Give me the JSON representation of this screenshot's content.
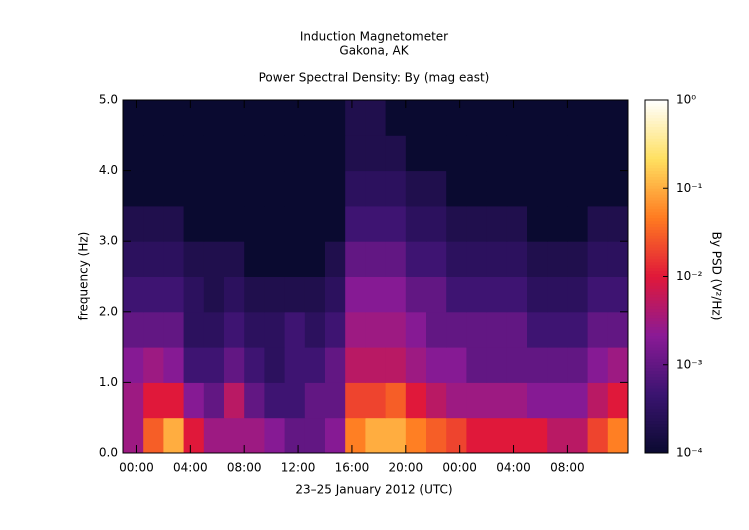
{
  "chart_data": {
    "type": "heatmap",
    "title": "Induction Magnetometer",
    "subtitle": "Gakona, AK",
    "plot_title": "Power Spectral Density: By (mag east)",
    "xlabel": "23–25 January 2012 (UTC)",
    "ylabel": "frequency (Hz)",
    "zlabel": "By PSD (V²/Hz)",
    "xlim": [
      -1,
      36.5
    ],
    "ylim": [
      0,
      5
    ],
    "xticks": [
      {
        "value": 0,
        "label": "00:00"
      },
      {
        "value": 4,
        "label": "04:00"
      },
      {
        "value": 8,
        "label": "08:00"
      },
      {
        "value": 12,
        "label": "12:00"
      },
      {
        "value": 16,
        "label": "16:00"
      },
      {
        "value": 20,
        "label": "20:00"
      },
      {
        "value": 24,
        "label": "00:00"
      },
      {
        "value": 28,
        "label": "04:00"
      },
      {
        "value": 32,
        "label": "08:00"
      }
    ],
    "yticks": [
      {
        "value": 0,
        "label": "0.0"
      },
      {
        "value": 1,
        "label": "1.0"
      },
      {
        "value": 2,
        "label": "2.0"
      },
      {
        "value": 3,
        "label": "3.0"
      },
      {
        "value": 4,
        "label": "4.0"
      },
      {
        "value": 5,
        "label": "5.0"
      }
    ],
    "zlim": [
      0.0001,
      1
    ],
    "zlog": true,
    "zticks": [
      {
        "value": 0.0001,
        "label": "10⁻⁴"
      },
      {
        "value": 0.001,
        "label": "10⁻³"
      },
      {
        "value": 0.01,
        "label": "10⁻²"
      },
      {
        "value": 0.1,
        "label": "10⁻¹"
      },
      {
        "value": 1,
        "label": "10⁰"
      }
    ],
    "colormap": [
      "#0a0a30",
      "#3a1470",
      "#8a1a96",
      "#e0183a",
      "#ff7a20",
      "#ffe060",
      "#ffffff"
    ],
    "xbins": [
      -1,
      0.5,
      2,
      3.5,
      5,
      6.5,
      8,
      9.5,
      11,
      12.5,
      14,
      15.5,
      17,
      18.5,
      20,
      21.5,
      23,
      24.5,
      26,
      27.5,
      29,
      30.5,
      32,
      33.5,
      35,
      36.5
    ],
    "ybins": [
      0,
      0.5,
      1,
      1.5,
      2,
      2.5,
      3,
      3.5,
      4,
      4.5,
      5
    ],
    "z": [
      [
        0.003,
        0.03,
        0.1,
        0.01,
        0.003,
        0.003,
        0.003,
        0.002,
        0.001,
        0.001,
        0.002,
        0.05,
        0.1,
        0.1,
        0.05,
        0.03,
        0.02,
        0.01,
        0.01,
        0.01,
        0.01,
        0.005,
        0.005,
        0.02,
        0.05
      ],
      [
        0.003,
        0.01,
        0.01,
        0.002,
        0.001,
        0.005,
        0.001,
        0.0005,
        0.0005,
        0.001,
        0.001,
        0.02,
        0.02,
        0.03,
        0.01,
        0.005,
        0.003,
        0.003,
        0.003,
        0.003,
        0.002,
        0.002,
        0.002,
        0.005,
        0.01
      ],
      [
        0.002,
        0.003,
        0.002,
        0.0005,
        0.0005,
        0.001,
        0.0005,
        0.0003,
        0.0005,
        0.0005,
        0.001,
        0.005,
        0.005,
        0.005,
        0.003,
        0.002,
        0.002,
        0.001,
        0.001,
        0.001,
        0.001,
        0.001,
        0.001,
        0.002,
        0.003
      ],
      [
        0.001,
        0.001,
        0.001,
        0.0003,
        0.0003,
        0.0005,
        0.0003,
        0.0003,
        0.0005,
        0.0003,
        0.0005,
        0.003,
        0.003,
        0.003,
        0.002,
        0.001,
        0.001,
        0.001,
        0.001,
        0.001,
        0.0005,
        0.0005,
        0.0005,
        0.001,
        0.001
      ],
      [
        0.0005,
        0.0005,
        0.0005,
        0.0003,
        0.0002,
        0.0003,
        0.0002,
        0.0002,
        0.0002,
        0.0002,
        0.0003,
        0.002,
        0.002,
        0.002,
        0.001,
        0.001,
        0.0005,
        0.0005,
        0.0005,
        0.0005,
        0.0003,
        0.0003,
        0.0003,
        0.0005,
        0.0005
      ],
      [
        0.0003,
        0.0003,
        0.0003,
        0.0002,
        0.0002,
        0.0002,
        0.0001,
        0.0001,
        0.0001,
        0.0001,
        0.0002,
        0.001,
        0.001,
        0.001,
        0.0005,
        0.0005,
        0.0003,
        0.0003,
        0.0003,
        0.0003,
        0.0002,
        0.0002,
        0.0002,
        0.0003,
        0.0003
      ],
      [
        0.0002,
        0.0002,
        0.0002,
        0.0001,
        0.0001,
        0.0001,
        0.0001,
        0.0001,
        0.0001,
        0.0001,
        0.0001,
        0.0005,
        0.0005,
        0.0005,
        0.0003,
        0.0003,
        0.0002,
        0.0002,
        0.0002,
        0.0002,
        0.0001,
        0.0001,
        0.0001,
        0.0002,
        0.0002
      ],
      [
        0.0001,
        0.0001,
        0.0001,
        0.0001,
        0.0001,
        0.0001,
        0.0001,
        0.0001,
        0.0001,
        0.0001,
        0.0001,
        0.0003,
        0.0003,
        0.0003,
        0.0002,
        0.0002,
        0.0001,
        0.0001,
        0.0001,
        0.0001,
        0.0001,
        0.0001,
        0.0001,
        0.0001,
        0.0001
      ],
      [
        0.0001,
        0.0001,
        0.0001,
        0.0001,
        0.0001,
        0.0001,
        0.0001,
        0.0001,
        0.0001,
        0.0001,
        0.0001,
        0.0002,
        0.0002,
        0.0002,
        0.0001,
        0.0001,
        0.0001,
        0.0001,
        0.0001,
        0.0001,
        0.0001,
        0.0001,
        0.0001,
        0.0001,
        0.0001
      ],
      [
        0.0001,
        0.0001,
        0.0001,
        0.0001,
        0.0001,
        0.0001,
        0.0001,
        0.0001,
        0.0001,
        0.0001,
        0.0001,
        0.0002,
        0.0002,
        0.0001,
        0.0001,
        0.0001,
        0.0001,
        0.0001,
        0.0001,
        0.0001,
        0.0001,
        0.0001,
        0.0001,
        0.0001,
        0.0001
      ]
    ]
  }
}
